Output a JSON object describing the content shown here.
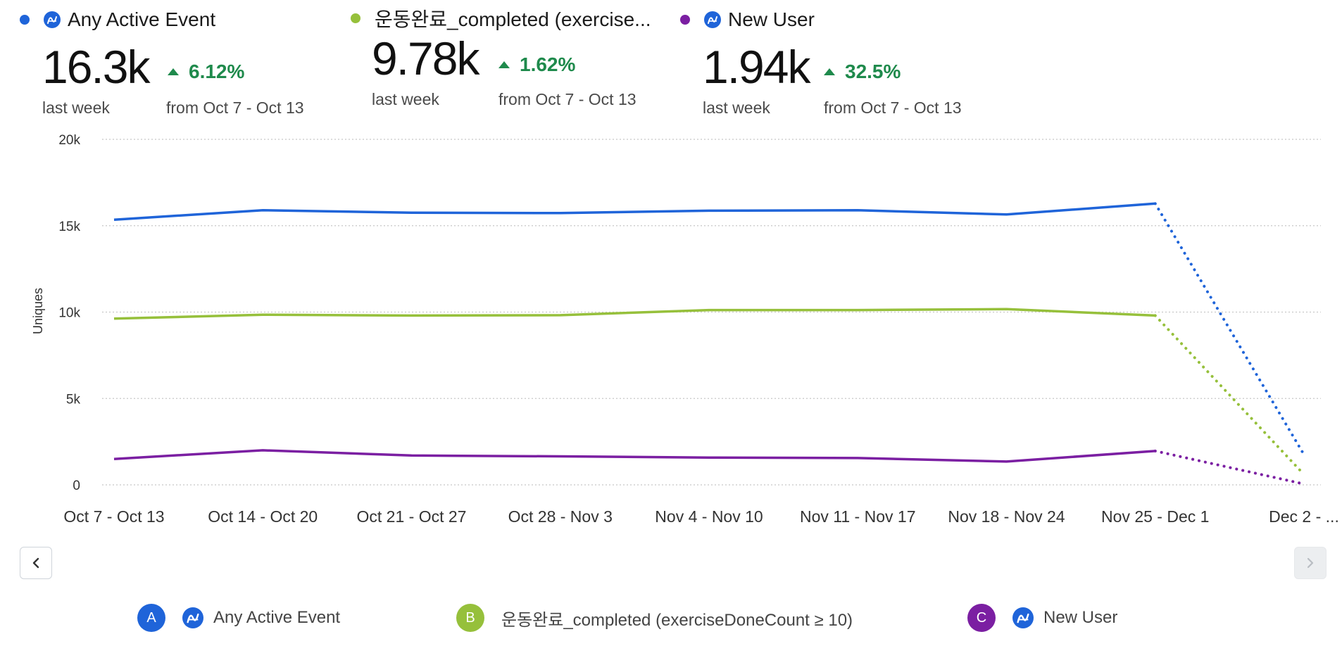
{
  "metrics": [
    {
      "name": "Any Active Event",
      "value": "16.3k",
      "period": "last week",
      "delta": "6.12%",
      "compare": "from Oct 7 - Oct 13",
      "color": "#1f64d9",
      "icon": "amplitude-icon"
    },
    {
      "name": "운동완료_completed (exercise...",
      "value": "9.78k",
      "period": "last week",
      "delta": "1.62%",
      "compare": "from Oct 7 - Oct 13",
      "color": "#96c03b",
      "icon": ""
    },
    {
      "name": "New User",
      "value": "1.94k",
      "period": "last week",
      "delta": "32.5%",
      "compare": "from Oct 7 - Oct 13",
      "color": "#7b1fa2",
      "icon": "amplitude-icon"
    }
  ],
  "chart_data": {
    "type": "line",
    "ylabel": "Uniques",
    "ylim": [
      0,
      20000
    ],
    "yticks": [
      "0",
      "5k",
      "10k",
      "15k",
      "20k"
    ],
    "ytick_values": [
      0,
      5000,
      10000,
      15000,
      20000
    ],
    "grid": true,
    "categories": [
      "Oct 7 - Oct 13",
      "Oct 14 - Oct 20",
      "Oct 21 - Oct 27",
      "Oct 28 - Nov 3",
      "Nov 4 - Nov 10",
      "Nov 11 - Nov 17",
      "Nov 18 - Nov 24",
      "Nov 25 - Dec 1",
      "Dec 2 - ..."
    ],
    "incomplete_last_point": true,
    "series": [
      {
        "name": "Any Active Event",
        "color": "#1f64d9",
        "values": [
          15350,
          15900,
          15750,
          15730,
          15870,
          15900,
          15650,
          16280,
          1750
        ]
      },
      {
        "name": "운동완료_completed (exerciseDoneCount ≥ 10)",
        "color": "#96c03b",
        "values": [
          9620,
          9850,
          9800,
          9820,
          10120,
          10120,
          10170,
          9800,
          600
        ]
      },
      {
        "name": "New User",
        "color": "#7b1fa2",
        "values": [
          1500,
          2000,
          1700,
          1650,
          1580,
          1550,
          1350,
          1960,
          50
        ]
      }
    ]
  },
  "legend": [
    {
      "badge": "A",
      "label": "Any Active Event",
      "color": "#1f64d9",
      "icon": "amplitude-icon"
    },
    {
      "badge": "B",
      "label": "운동완료_completed (exerciseDoneCount ≥ 10)",
      "color": "#96c03b",
      "icon": ""
    },
    {
      "badge": "C",
      "label": "New User",
      "color": "#7b1fa2",
      "icon": "amplitude-icon"
    }
  ],
  "nav": {
    "prev_icon": "chevron-left-icon",
    "next_icon": "chevron-right-icon"
  }
}
